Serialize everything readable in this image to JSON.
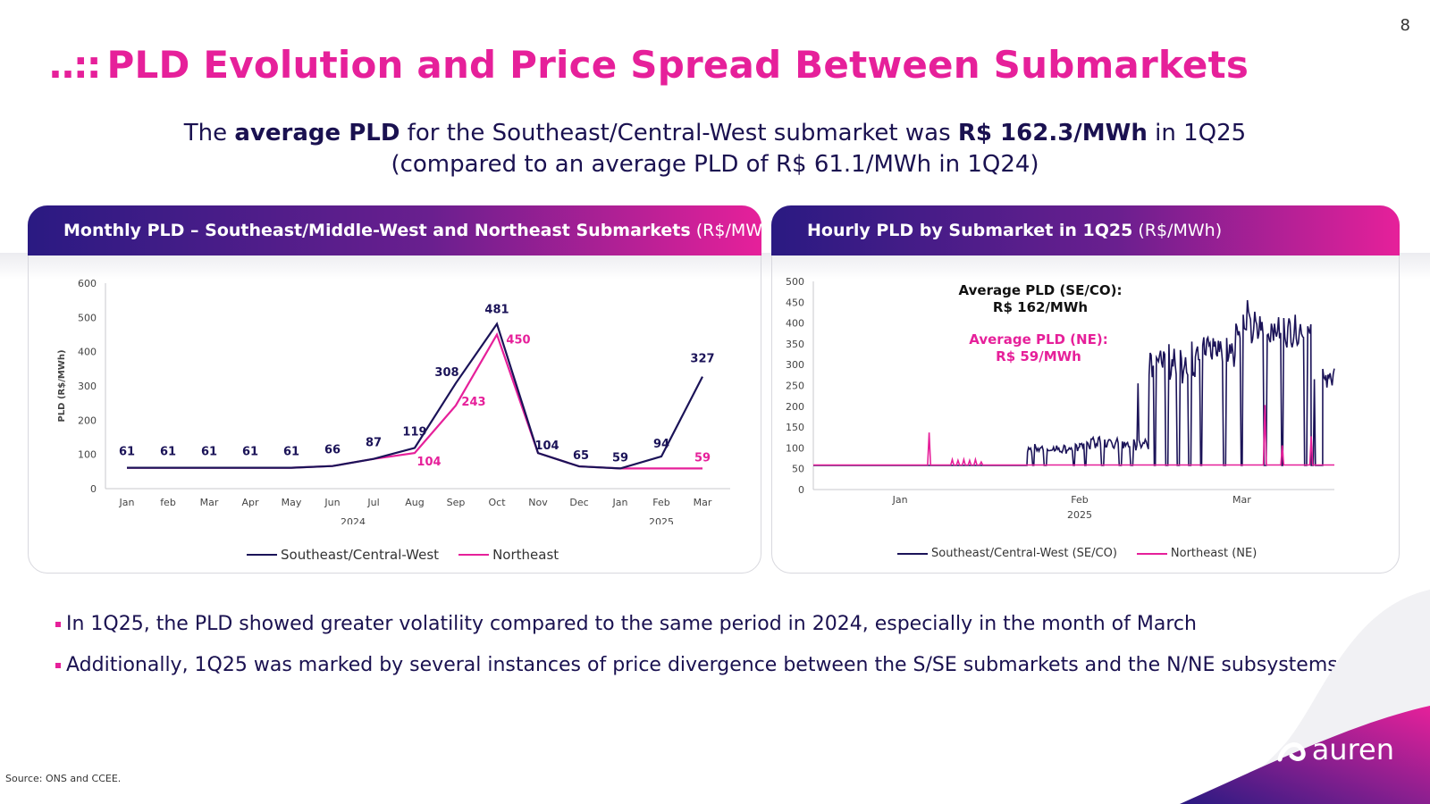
{
  "page_number": "8",
  "title": {
    "dots": "..::",
    "text": "PLD Evolution and Price Spread Between Submarkets"
  },
  "subtitle": {
    "line1_a": "The ",
    "line1_b": "average PLD",
    "line1_c": " for the Southeast/Central-West submarket was ",
    "line1_d": "R$ 162.3/MWh",
    "line1_e": " in 1Q25",
    "line2": "(compared to an average PLD of R$ 61.1/MWh in 1Q24)"
  },
  "panel_left": {
    "title_bold": "Monthly PLD – Southeast/Middle-West and Northeast Submarkets",
    "title_unit": " (R$/MWh)"
  },
  "panel_right": {
    "title_bold": "Hourly PLD by Submarket in 1Q25",
    "title_unit": " (R$/MWh)"
  },
  "colors": {
    "se": "#1b1358",
    "ne": "#e6209a",
    "title": "#e6209a",
    "text": "#1a1150"
  },
  "chart_data": [
    {
      "type": "line",
      "title": "Monthly PLD – Southeast/Middle-West and Northeast Submarkets (R$/MWh)",
      "ylabel": "PLD (R$/MWh)",
      "ylim": [
        0,
        600
      ],
      "yticks": [
        0,
        100,
        200,
        300,
        400,
        500,
        600
      ],
      "categories": [
        "Jan",
        "feb",
        "Mar",
        "Apr",
        "May",
        "Jun",
        "Jul",
        "Aug",
        "Sep",
        "Oct",
        "Nov",
        "Dec",
        "Jan",
        "Feb",
        "Mar"
      ],
      "year_labels": [
        {
          "label": "2024",
          "index": 5.5
        },
        {
          "label": "2025",
          "index": 13
        }
      ],
      "series": [
        {
          "name": "Southeast/Central-West",
          "values": [
            61,
            61,
            61,
            61,
            61,
            66,
            87,
            119,
            308,
            481,
            104,
            65,
            59,
            94,
            327
          ],
          "labels": [
            "61",
            "61",
            "61",
            "61",
            "61",
            "66",
            "87",
            "119",
            "308",
            "481",
            "104",
            "65",
            "59",
            "94",
            "327"
          ]
        },
        {
          "name": "Northeast",
          "values": [
            61,
            61,
            61,
            61,
            61,
            66,
            87,
            104,
            243,
            450,
            104,
            65,
            59,
            59,
            59
          ],
          "labels": {
            "7": "104",
            "8": "243",
            "9": "450",
            "14": "59"
          }
        }
      ],
      "legend": [
        "Southeast/Central-West",
        "Northeast"
      ]
    },
    {
      "type": "line",
      "title": "Hourly PLD by Submarket in 1Q25 (R$/MWh)",
      "ylim": [
        0,
        500
      ],
      "yticks": [
        0,
        50,
        100,
        150,
        200,
        250,
        300,
        350,
        400,
        450,
        500
      ],
      "x_labels": [
        {
          "label": "Jan",
          "day": 15
        },
        {
          "label": "Feb",
          "day": 46
        },
        {
          "label": "Mar",
          "day": 74
        }
      ],
      "year_label": "2025",
      "x_days": 90,
      "series": [
        {
          "name": "Southeast/Central-West (SE/CO)",
          "segments": [
            {
              "from": 0,
              "to": 37,
              "base": 58,
              "amp": 0
            },
            {
              "from": 37,
              "to": 46,
              "base": 98,
              "amp": 8,
              "dips": [
                38,
                40,
                45
              ]
            },
            {
              "from": 46,
              "to": 58,
              "base": 112,
              "amp": 12,
              "dips": [
                47,
                50,
                53,
                55
              ],
              "spikes": [
                {
                  "day": 56,
                  "value": 255
                }
              ]
            },
            {
              "from": 58,
              "to": 66,
              "base": 310,
              "amp": 35,
              "dips": [
                59,
                61,
                63,
                65
              ]
            },
            {
              "from": 66,
              "to": 73,
              "base": 340,
              "amp": 30,
              "dips": [
                67,
                71
              ]
            },
            {
              "from": 73,
              "to": 80,
              "base": 385,
              "amp": 30,
              "dips": [
                74,
                78
              ],
              "spikes": [
                {
                  "day": 75,
                  "value": 455
                }
              ]
            },
            {
              "from": 80,
              "to": 86,
              "base": 380,
              "amp": 25,
              "dips": [
                81,
                85
              ]
            },
            {
              "from": 86,
              "to": 88,
              "base": 58,
              "amp": 0,
              "spikes": [
                {
                  "day": 86.5,
                  "value": 265
                }
              ]
            },
            {
              "from": 88,
              "to": 90,
              "base": 270,
              "amp": 25
            }
          ]
        },
        {
          "name": "Northeast (NE)",
          "base": 59,
          "spikes": [
            {
              "day": 20,
              "value": 137
            },
            {
              "day": 24,
              "value": 72
            },
            {
              "day": 25,
              "value": 70
            },
            {
              "day": 26,
              "value": 72
            },
            {
              "day": 27,
              "value": 70
            },
            {
              "day": 28,
              "value": 72
            },
            {
              "day": 29,
              "value": 66
            },
            {
              "day": 78,
              "value": 203
            },
            {
              "day": 81,
              "value": 106
            },
            {
              "day": 86,
              "value": 128
            }
          ]
        }
      ],
      "annotations": [
        {
          "line1": "Average PLD (SE/CO):",
          "line2": "R$ 162/MWh"
        },
        {
          "line1": "Average PLD (NE):",
          "line2": "R$ 59/MWh"
        }
      ],
      "legend": [
        "Southeast/Central-West (SE/CO)",
        "Northeast (NE)"
      ]
    }
  ],
  "bullets": [
    "In 1Q25, the PLD showed greater volatility compared to the same period in 2024, especially in the month of March",
    "Additionally, 1Q25 was marked by several instances of price divergence between the S/SE submarkets and the N/NE subsystems"
  ],
  "source": "Source: ONS and CCEE.",
  "logo": {
    "text": "auren"
  }
}
